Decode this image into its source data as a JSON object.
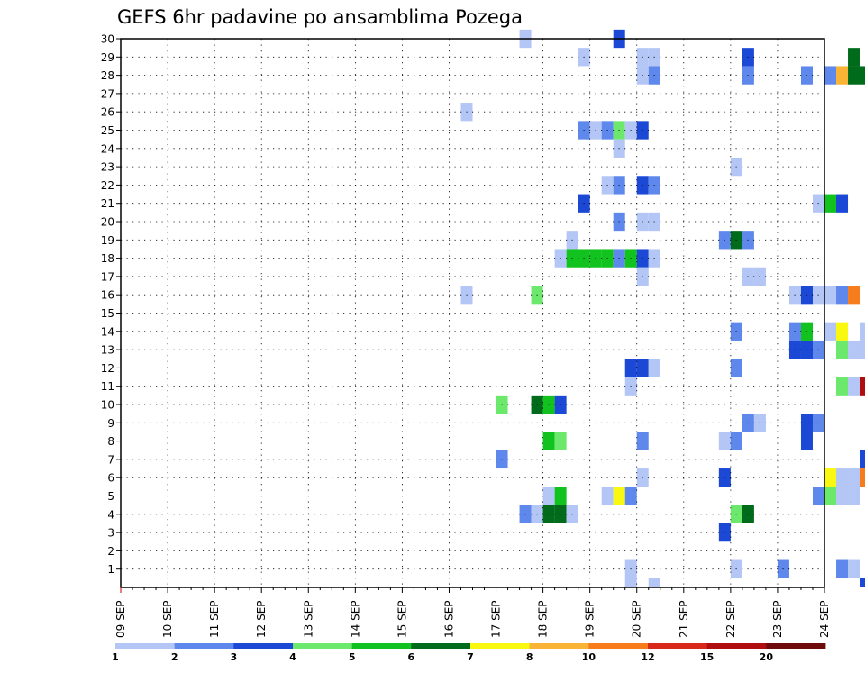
{
  "chart_data": {
    "type": "heatmap",
    "title": "GEFS 6hr padavine po ansamblima Pozega",
    "x_tick_labels": [
      "09 SEP",
      "10 SEP",
      "11 SEP",
      "12 SEP",
      "13 SEP",
      "14 SEP",
      "15 SEP",
      "16 SEP",
      "17 SEP",
      "18 SEP",
      "19 SEP",
      "20 SEP",
      "21 SEP",
      "22 SEP",
      "23 SEP",
      "24 SEP"
    ],
    "x_range_days": [
      0,
      15
    ],
    "x_step": "6hr",
    "y_tick_labels": [
      "1",
      "2",
      "3",
      "4",
      "5",
      "6",
      "7",
      "8",
      "9",
      "10",
      "11",
      "12",
      "13",
      "14",
      "15",
      "16",
      "17",
      "18",
      "19",
      "20",
      "21",
      "22",
      "23",
      "24",
      "25",
      "26",
      "27",
      "28",
      "29",
      "30"
    ],
    "y_range": [
      0,
      30
    ],
    "grid": true,
    "legend": {
      "placement": "bottom",
      "labels": [
        "1",
        "2",
        "3",
        "4",
        "5",
        "6",
        "7",
        "8",
        "10",
        "12",
        "15",
        "20"
      ],
      "colors": [
        "#b3c6f5",
        "#5f88ec",
        "#1c48d6",
        "#6ce86c",
        "#12c21e",
        "#006b1a",
        "#f8f810",
        "#f9b436",
        "#f77d1c",
        "#d8281a",
        "#b00e0e",
        "#6e0a0a"
      ]
    },
    "cells": [
      [
        2,
        1,
        30
      ],
      [
        10,
        3,
        30
      ],
      [
        7,
        1,
        29
      ],
      [
        12,
        1,
        29
      ],
      [
        13,
        1,
        29
      ],
      [
        21,
        3,
        29
      ],
      [
        30,
        6,
        29
      ],
      [
        39,
        2,
        29
      ],
      [
        40,
        2,
        29
      ],
      [
        12,
        1,
        28
      ],
      [
        13,
        2,
        28
      ],
      [
        21,
        2,
        28
      ],
      [
        26,
        2,
        28
      ],
      [
        28,
        2,
        28
      ],
      [
        29,
        8,
        28
      ],
      [
        30,
        6,
        28
      ],
      [
        31,
        6,
        28
      ],
      [
        32,
        1,
        28
      ],
      [
        36,
        1,
        28
      ],
      [
        37,
        2,
        28
      ],
      [
        38,
        1,
        28
      ],
      [
        39,
        1,
        28
      ],
      [
        40,
        2,
        28
      ],
      [
        32,
        2,
        27
      ],
      [
        33,
        4,
        27
      ],
      [
        -3,
        1,
        26
      ],
      [
        7,
        2,
        25
      ],
      [
        8,
        1,
        25
      ],
      [
        9,
        2,
        25
      ],
      [
        10,
        4,
        25
      ],
      [
        11,
        1,
        25
      ],
      [
        12,
        3,
        25
      ],
      [
        10,
        1,
        24
      ],
      [
        20,
        1,
        23
      ],
      [
        9,
        1,
        22
      ],
      [
        10,
        2,
        22
      ],
      [
        12,
        3,
        22
      ],
      [
        13,
        2,
        22
      ],
      [
        7,
        3,
        21
      ],
      [
        27,
        1,
        21
      ],
      [
        28,
        5,
        21
      ],
      [
        29,
        3,
        21
      ],
      [
        33,
        2,
        21
      ],
      [
        10,
        2,
        20
      ],
      [
        12,
        1,
        20
      ],
      [
        13,
        1,
        20
      ],
      [
        37,
        9,
        20
      ],
      [
        38,
        2,
        20
      ],
      [
        6,
        1,
        19
      ],
      [
        19,
        2,
        19
      ],
      [
        20,
        6,
        19
      ],
      [
        21,
        2,
        19
      ],
      [
        5,
        1,
        18
      ],
      [
        6,
        5,
        18
      ],
      [
        7,
        5,
        18
      ],
      [
        8,
        5,
        18
      ],
      [
        9,
        5,
        18
      ],
      [
        10,
        2,
        18
      ],
      [
        11,
        5,
        18
      ],
      [
        12,
        3,
        18
      ],
      [
        13,
        1,
        18
      ],
      [
        12,
        1,
        17
      ],
      [
        21,
        1,
        17
      ],
      [
        22,
        1,
        17
      ],
      [
        -3,
        1,
        16
      ],
      [
        3,
        4,
        16
      ],
      [
        25,
        1,
        16
      ],
      [
        26,
        3,
        16
      ],
      [
        27,
        1,
        16
      ],
      [
        28,
        1,
        16
      ],
      [
        29,
        2,
        16
      ],
      [
        30,
        9,
        16
      ],
      [
        34,
        2,
        16
      ],
      [
        35,
        3,
        16
      ],
      [
        36,
        2,
        16
      ],
      [
        20,
        2,
        14
      ],
      [
        25,
        2,
        14
      ],
      [
        26,
        5,
        14
      ],
      [
        28,
        1,
        14
      ],
      [
        29,
        7,
        14
      ],
      [
        31,
        1,
        14
      ],
      [
        32,
        1,
        14
      ],
      [
        25,
        3,
        13
      ],
      [
        26,
        3,
        13
      ],
      [
        27,
        2,
        13
      ],
      [
        29,
        4,
        13
      ],
      [
        30,
        1,
        13
      ],
      [
        31,
        1,
        13
      ],
      [
        32,
        3,
        13
      ],
      [
        33,
        6,
        13
      ],
      [
        34,
        4,
        13
      ],
      [
        11,
        3,
        12
      ],
      [
        12,
        3,
        12
      ],
      [
        13,
        1,
        12
      ],
      [
        20,
        2,
        12
      ],
      [
        34,
        1,
        12
      ],
      [
        41,
        1,
        12
      ],
      [
        11,
        1,
        11
      ],
      [
        29,
        4,
        11
      ],
      [
        30,
        1,
        11
      ],
      [
        31,
        11,
        11
      ],
      [
        32,
        1,
        11
      ],
      [
        0,
        4,
        10
      ],
      [
        3,
        6,
        10
      ],
      [
        4,
        5,
        10
      ],
      [
        5,
        3,
        10
      ],
      [
        37,
        3,
        10
      ],
      [
        39,
        2,
        10
      ],
      [
        40,
        5,
        10
      ],
      [
        41,
        2,
        10
      ],
      [
        21,
        2,
        9
      ],
      [
        22,
        1,
        9
      ],
      [
        26,
        3,
        9
      ],
      [
        27,
        2,
        9
      ],
      [
        4,
        5,
        8
      ],
      [
        5,
        4,
        8
      ],
      [
        12,
        2,
        8
      ],
      [
        19,
        1,
        8
      ],
      [
        20,
        2,
        8
      ],
      [
        26,
        3,
        8
      ],
      [
        0,
        2,
        7
      ],
      [
        31,
        3,
        7
      ],
      [
        32,
        2,
        7
      ],
      [
        33,
        2,
        7
      ],
      [
        40,
        1,
        7
      ],
      [
        12,
        1,
        6
      ],
      [
        19,
        3,
        6
      ],
      [
        28,
        7,
        6
      ],
      [
        29,
        1,
        6
      ],
      [
        30,
        1,
        6
      ],
      [
        31,
        9,
        6
      ],
      [
        33,
        1,
        6
      ],
      [
        34,
        9,
        6
      ],
      [
        4,
        1,
        5
      ],
      [
        5,
        5,
        5
      ],
      [
        9,
        1,
        5
      ],
      [
        10,
        7,
        5
      ],
      [
        11,
        2,
        5
      ],
      [
        27,
        2,
        5
      ],
      [
        28,
        4,
        5
      ],
      [
        29,
        1,
        5
      ],
      [
        30,
        1,
        5
      ],
      [
        37,
        1,
        5
      ],
      [
        38,
        1,
        5
      ],
      [
        39,
        7,
        5
      ],
      [
        2,
        2,
        4
      ],
      [
        3,
        1,
        4
      ],
      [
        4,
        6,
        4
      ],
      [
        5,
        6,
        4
      ],
      [
        6,
        1,
        4
      ],
      [
        20,
        4,
        4
      ],
      [
        21,
        6,
        4
      ],
      [
        19,
        3,
        3
      ],
      [
        11,
        1,
        1
      ],
      [
        20,
        1,
        1
      ],
      [
        24,
        2,
        1
      ],
      [
        29,
        2,
        1
      ],
      [
        30,
        1,
        1
      ],
      [
        32,
        1,
        1
      ],
      [
        33,
        1,
        1
      ],
      [
        34,
        4,
        1
      ],
      [
        35,
        3,
        1
      ],
      [
        36,
        1,
        1
      ],
      [
        37,
        1,
        1
      ],
      [
        11,
        1,
        0
      ],
      [
        13,
        1,
        0
      ],
      [
        31,
        3,
        0
      ]
    ]
  }
}
